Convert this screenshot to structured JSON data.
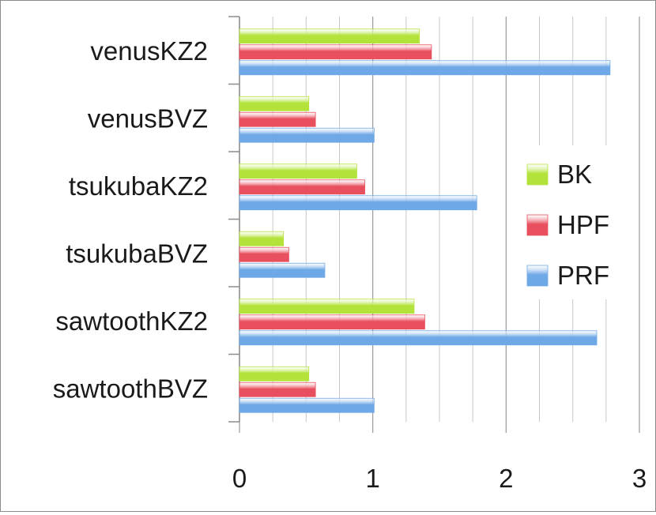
{
  "chart_data": {
    "type": "bar",
    "orientation": "horizontal",
    "categories": [
      "venusKZ2",
      "venusBVZ",
      "tsukubaKZ2",
      "tsukubaBVZ",
      "sawtoothKZ2",
      "sawtoothBVZ"
    ],
    "series": [
      {
        "name": "BK",
        "color": "#b3e33b",
        "values": [
          1.35,
          0.52,
          0.88,
          0.33,
          1.31,
          0.52
        ]
      },
      {
        "name": "HPF",
        "color": "#e8505f",
        "values": [
          1.44,
          0.57,
          0.94,
          0.37,
          1.39,
          0.57
        ]
      },
      {
        "name": "PRF",
        "color": "#6fa8e6",
        "values": [
          2.78,
          1.01,
          1.78,
          0.64,
          2.68,
          1.01
        ]
      }
    ],
    "xlim": [
      0,
      3
    ],
    "x_ticks": [
      "0",
      "1",
      "2",
      "3"
    ],
    "grid": "vertical",
    "legend_position": "right",
    "title": "",
    "xlabel": "",
    "ylabel": ""
  }
}
